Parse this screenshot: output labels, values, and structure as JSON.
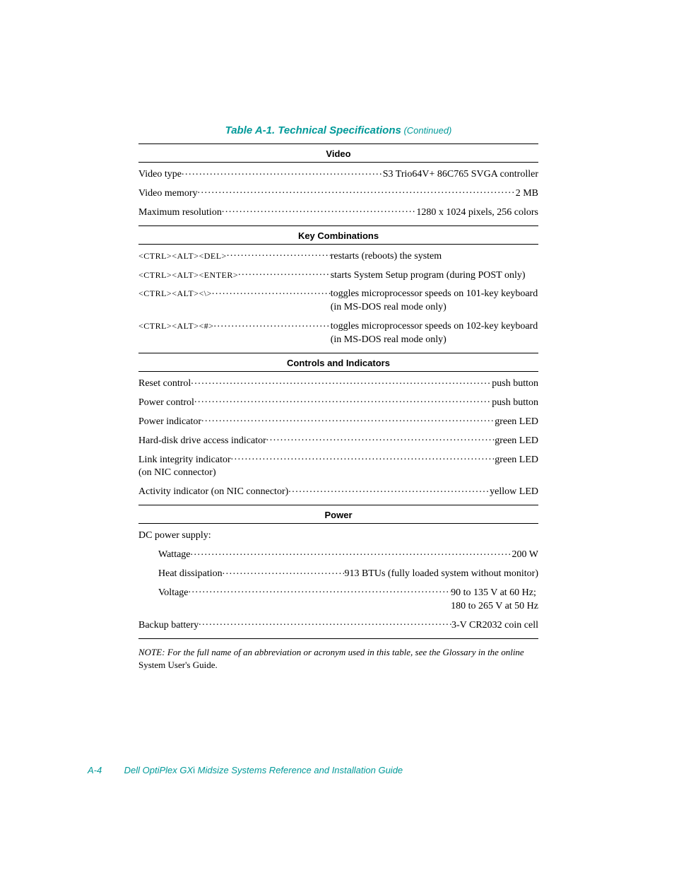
{
  "title": {
    "main": "Table A-1.  Technical Specifications",
    "continued": " (Continued)"
  },
  "sections": [
    {
      "head": "Video",
      "rows": [
        {
          "label": "Video type",
          "value": "S3 Trio64V+ 86C765 SVGA controller"
        },
        {
          "label": "Video memory",
          "value": "2 MB"
        },
        {
          "label": "Maximum resolution",
          "value": "1280 x 1024 pixels, 256 colors"
        }
      ]
    },
    {
      "head": "Key Combinations",
      "wide": true,
      "rows": [
        {
          "label_html": "<span class='sc keycap'>&lt;CTRL&gt;&lt;ALT&gt;&lt;DEL&gt;</span>",
          "value": "restarts (reboots) the system"
        },
        {
          "label_html": "<span class='sc keycap'>&lt;CTRL&gt;&lt;ALT&gt;&lt;ENTER&gt;</span>",
          "value": "starts System Setup program (during POST only)"
        },
        {
          "label_html": "<span class='sc keycap'>&lt;CTRL&gt;&lt;ALT&gt;&lt;\\&gt;</span>",
          "value": "toggles microprocessor speeds on 101-key keyboard (in MS-DOS real mode only)"
        },
        {
          "label_html": "<span class='sc keycap'>&lt;CTRL&gt;&lt;ALT&gt;&lt;#&gt;</span>",
          "value": "toggles microprocessor speeds on 102-key keyboard (in MS-DOS real mode only)"
        }
      ]
    },
    {
      "head": "Controls and Indicators",
      "rows": [
        {
          "label": "Reset control",
          "value": "push button"
        },
        {
          "label": "Power control",
          "value": "push button"
        },
        {
          "label": "Power indicator",
          "value": "green LED"
        },
        {
          "label": "Hard-disk drive access indicator",
          "value": "green LED"
        },
        {
          "label_html": "Link integrity indicator<br>(on NIC connector)",
          "value": "green LED"
        },
        {
          "label": "Activity indicator (on NIC connector)",
          "value": "yellow LED"
        }
      ]
    },
    {
      "head": "Power",
      "rows": [
        {
          "label": "DC power supply:",
          "no_dots": true,
          "value": ""
        },
        {
          "label": "Wattage",
          "indent": true,
          "value": "200 W"
        },
        {
          "label": "Heat dissipation",
          "indent": true,
          "value": "913 BTUs (fully loaded system without monitor)"
        },
        {
          "label": "Voltage",
          "indent": true,
          "value_html": "90 to 135 V at 60 Hz;<br>180 to 265 V at 50 Hz"
        },
        {
          "label": "Backup battery",
          "value": "3-V CR2032 coin cell"
        }
      ]
    }
  ],
  "note": {
    "lead": "NOTE:",
    "body": "  For the full name of an abbreviation or acronym used in this table, see the Glossary in the online",
    "tail": " System User's Guide."
  },
  "footer": {
    "page_no": "A-4",
    "title_pre": "Dell OptiPlex GX",
    "title_i": "i",
    "title_post": " Midsize Systems Reference and Installation Guide"
  }
}
